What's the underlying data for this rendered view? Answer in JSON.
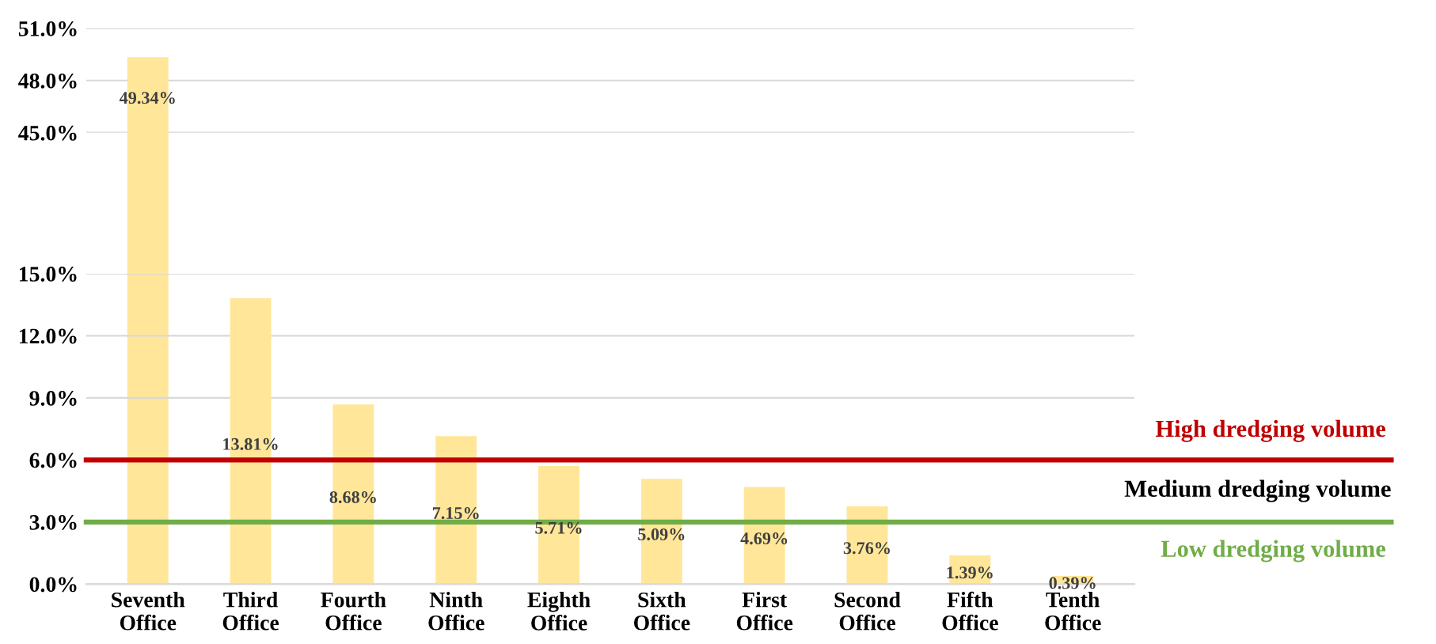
{
  "chart_data": [
    {
      "type": "bar",
      "categories": [
        null,
        null,
        null,
        null,
        null,
        null,
        null,
        null,
        null,
        null
      ],
      "values": [
        49.34,
        null,
        null,
        null,
        null,
        null,
        null,
        null,
        null,
        null
      ],
      "value_labels": [
        "49.34%",
        null,
        null,
        null,
        null,
        null,
        null,
        null,
        null,
        null
      ],
      "color": "#ffe699",
      "ylim": [
        45,
        51
      ],
      "yticks": [
        {
          "value": 45,
          "label": "45.0%"
        },
        {
          "value": 48,
          "label": "48.0%"
        },
        {
          "value": 51,
          "label": "51.0%"
        }
      ],
      "tick_labels": "y",
      "grid": "y"
    },
    {
      "type": "bar",
      "categories": [
        "Seventh\nOffice",
        "Third\nOffice",
        "Fourth\nOffice",
        "Ninth\nOffice",
        "Eighth\nOffice",
        "Sixth\nOffice",
        "First\nOffice",
        "Second\nOffice",
        "Fifth\nOffice",
        "Tenth\nOffice"
      ],
      "values": [
        null,
        13.81,
        8.68,
        7.15,
        5.71,
        5.09,
        4.69,
        3.76,
        1.39,
        0.39
      ],
      "value_labels": [
        null,
        "13.81%",
        "8.68%",
        "7.15%",
        "5.71%",
        "5.09%",
        "4.69%",
        "3.76%",
        "1.39%",
        "0.39%"
      ],
      "color": "#ffe699",
      "ylim": [
        0,
        15
      ],
      "yticks": [
        {
          "value": 0,
          "label": "0.0%"
        },
        {
          "value": 3,
          "label": "3.0%"
        },
        {
          "value": 6,
          "label": "6.0%"
        },
        {
          "value": 9,
          "label": "9.0%"
        },
        {
          "value": 12,
          "label": "12.0%"
        },
        {
          "value": 15,
          "label": "15.0%"
        }
      ],
      "grid": "y",
      "ref_lines": [
        {
          "axis": "y",
          "value": 6,
          "label": "High dredging volume",
          "color": "#c00000"
        },
        {
          "axis": "y",
          "value": 3,
          "label": "Low dredging volume",
          "color": "#70ad47"
        }
      ],
      "annotations": [
        "Medium dredging volume"
      ]
    }
  ]
}
